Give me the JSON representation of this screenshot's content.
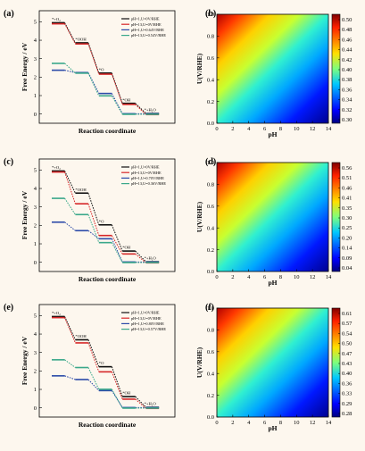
{
  "chart_data": [
    {
      "type": "line",
      "panel": "(a)",
      "xlabel": "Reaction coordinate",
      "ylabel": "Free Energy / eV",
      "ylim": [
        -0.5,
        5.6
      ],
      "yticks": [
        0,
        1,
        2,
        3,
        4,
        5
      ],
      "step_labels": [
        "*+O₂",
        "*OOH",
        "*O",
        "*OH",
        "*+H₂O"
      ],
      "legend_position": "top-right",
      "series": [
        {
          "name": "pH=1,U=0V/RHE",
          "color": "#111111",
          "values": [
            4.92,
            3.83,
            2.19,
            0.55,
            0.0
          ]
        },
        {
          "name": "pH=13,U=0V/RHE",
          "color": "#d62728",
          "values": [
            4.92,
            3.83,
            2.19,
            0.55,
            0.0
          ]
        },
        {
          "name": "pH=1,U=0.64V/RHE",
          "color": "#2b4aa8",
          "values": [
            2.36,
            2.23,
            1.1,
            0.0,
            0.0
          ]
        },
        {
          "name": "pH=13,U=0.54V/RHE",
          "color": "#3aa88a",
          "values": [
            2.76,
            2.23,
            1.0,
            0.0,
            0.0
          ]
        }
      ]
    },
    {
      "type": "heatmap",
      "panel": "(b)",
      "xlabel": "pH",
      "ylabel": "U(V/RHE)",
      "xlim": [
        0,
        14
      ],
      "ylim": [
        0,
        1.0
      ],
      "xticks": [
        0,
        2,
        4,
        6,
        8,
        10,
        12,
        14
      ],
      "yticks": [
        0,
        0.2,
        0.4,
        0.6,
        0.8,
        1.0
      ],
      "colorbar": {
        "min": 0.3,
        "max": 0.52,
        "ticks": [
          "0.50",
          "0.48",
          "0.46",
          "0.44",
          "0.42",
          "0.40",
          "0.38",
          "0.36",
          "0.34",
          "0.32",
          "0.30"
        ]
      }
    },
    {
      "type": "line",
      "panel": "(c)",
      "xlabel": "Reaction coordinate",
      "ylabel": "Free Energy / eV",
      "ylim": [
        -0.5,
        5.6
      ],
      "yticks": [
        0,
        1,
        2,
        3,
        4,
        5
      ],
      "step_labels": [
        "*+O₂",
        "*OOH",
        "*O",
        "*OH",
        "*+H₂O"
      ],
      "legend_position": "top-right",
      "series": [
        {
          "name": "pH=1,U=0V/RHE",
          "color": "#111111",
          "values": [
            4.92,
            3.72,
            2.0,
            0.58,
            0.0
          ]
        },
        {
          "name": "pH=13,U=0V/RHE",
          "color": "#d62728",
          "values": [
            4.92,
            3.2,
            1.48,
            0.48,
            0.0
          ]
        },
        {
          "name": "pH=1,U=0.70V/RHE",
          "color": "#2b4aa8",
          "values": [
            2.16,
            1.7,
            1.26,
            0.0,
            0.0
          ]
        },
        {
          "name": "pH=13,U=0.36V/RHE",
          "color": "#3aa88a",
          "values": [
            3.48,
            2.6,
            1.08,
            0.0,
            0.0
          ]
        }
      ]
    },
    {
      "type": "heatmap",
      "panel": "(d)",
      "xlabel": "pH",
      "ylabel": "U(V/RHE)",
      "xlim": [
        0,
        14
      ],
      "ylim": [
        0,
        1.0
      ],
      "xticks": [
        0,
        2,
        4,
        6,
        8,
        10,
        12,
        14
      ],
      "yticks": [
        0,
        0.2,
        0.4,
        0.6,
        0.8,
        1.0
      ],
      "colorbar": {
        "min": 0.04,
        "max": 0.58,
        "ticks": [
          "0.56",
          "0.51",
          "0.46",
          "0.41",
          "0.35",
          "0.30",
          "0.25",
          "0.20",
          "0.14",
          "0.09",
          "0.04"
        ]
      }
    },
    {
      "type": "line",
      "panel": "(e)",
      "xlabel": "Reaction coordinate",
      "ylabel": "Free Energy / eV",
      "ylim": [
        -0.5,
        5.6
      ],
      "yticks": [
        0,
        1,
        2,
        3,
        4,
        5
      ],
      "step_labels": [
        "*+O₂",
        "*OOH",
        "*O",
        "*OH",
        "*+H₂O"
      ],
      "legend_position": "top-right",
      "series": [
        {
          "name": "pH=1,U=0V/RHE",
          "color": "#111111",
          "values": [
            4.92,
            3.66,
            2.2,
            0.58,
            0.0
          ]
        },
        {
          "name": "pH=13,U=0V/RHE",
          "color": "#d62728",
          "values": [
            4.92,
            3.55,
            1.98,
            0.5,
            0.0
          ]
        },
        {
          "name": "pH=1,U=0.80V/RHE",
          "color": "#2b4aa8",
          "values": [
            1.72,
            1.52,
            0.92,
            0.0,
            0.0
          ]
        },
        {
          "name": "pH=13,U=0.57V/RHE",
          "color": "#3aa88a",
          "values": [
            2.62,
            2.2,
            1.02,
            0.0,
            0.0
          ]
        }
      ]
    },
    {
      "type": "heatmap",
      "panel": "(f)",
      "xlabel": "pH",
      "ylabel": "U(V/RHE)",
      "xlim": [
        0,
        14
      ],
      "ylim": [
        0,
        1.0
      ],
      "xticks": [
        0,
        2,
        4,
        6,
        8,
        10,
        12,
        14
      ],
      "yticks": [
        0,
        0.2,
        0.4,
        0.6,
        0.8,
        1.0
      ],
      "colorbar": {
        "min": 0.28,
        "max": 0.63,
        "ticks": [
          "0.61",
          "0.57",
          "0.54",
          "0.50",
          "0.47",
          "0.43",
          "0.40",
          "0.36",
          "0.33",
          "0.29",
          "0.28"
        ]
      }
    }
  ]
}
